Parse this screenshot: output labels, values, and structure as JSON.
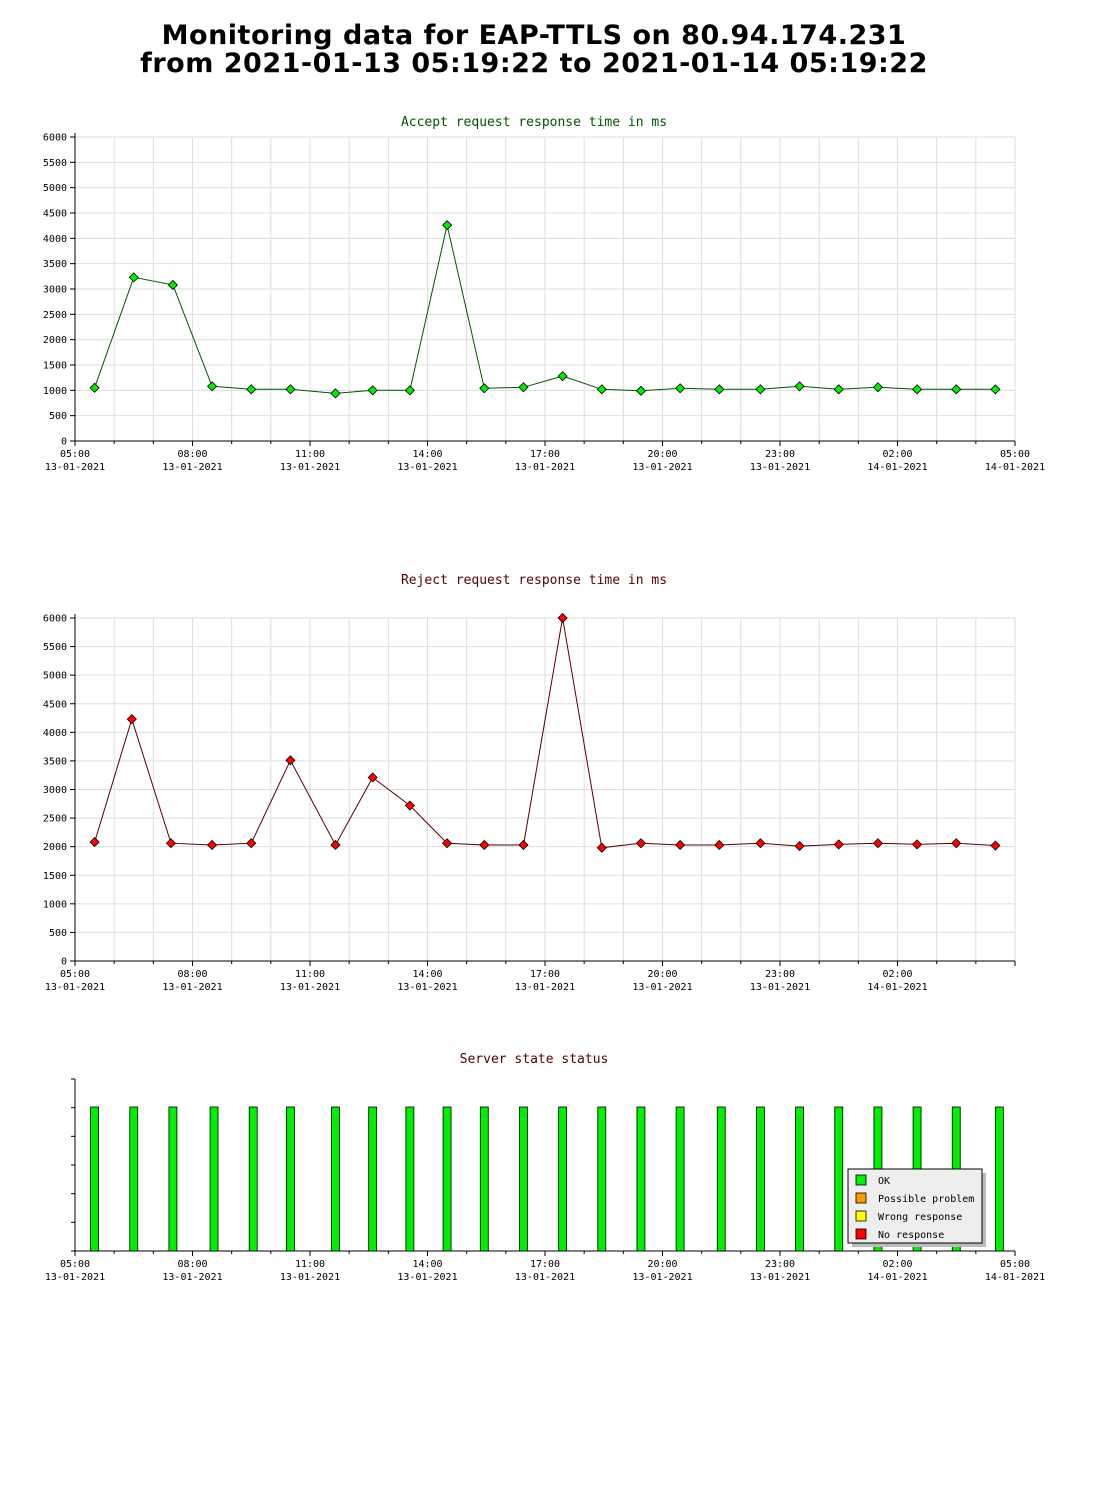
{
  "page": {
    "title_line1": "Monitoring data for EAP-TTLS on 80.94.174.231",
    "title_line2": "from 2021-01-13 05:19:22 to 2021-01-14 05:19:22"
  },
  "colors": {
    "accept_line": "#005500",
    "accept_marker": "#00ee00",
    "reject_line": "#550000",
    "reject_marker": "#ff0000",
    "accept_title": "#005500",
    "reject_title": "#550000",
    "status_title": "#550000",
    "ok": "#00ee00",
    "possible_problem": "#ff9900",
    "wrong_response": "#ffff00",
    "no_response": "#ff0000",
    "grid": "#dddddd"
  },
  "chart_data": [
    {
      "type": "line",
      "title": "Accept request response time in ms",
      "ylim": [
        0,
        6000
      ],
      "yticks": [
        0,
        500,
        1000,
        1500,
        2000,
        2500,
        3000,
        3500,
        4000,
        4500,
        5000,
        5500,
        6000
      ],
      "x_tick_labels": [
        {
          "time": "05:00",
          "date": "13-01-2021"
        },
        {
          "time": "08:00",
          "date": "13-01-2021"
        },
        {
          "time": "11:00",
          "date": "13-01-2021"
        },
        {
          "time": "14:00",
          "date": "13-01-2021"
        },
        {
          "time": "17:00",
          "date": "13-01-2021"
        },
        {
          "time": "20:00",
          "date": "13-01-2021"
        },
        {
          "time": "23:00",
          "date": "13-01-2021"
        },
        {
          "time": "02:00",
          "date": "14-01-2021"
        },
        {
          "time": "05:00",
          "date": "14-01-2021"
        }
      ],
      "x_hours": [
        0.5,
        1.5,
        2.5,
        3.5,
        4.5,
        5.5,
        6.65,
        7.6,
        8.55,
        9.5,
        10.45,
        11.45,
        12.45,
        13.45,
        14.45,
        15.45,
        16.45,
        17.5,
        18.5,
        19.5,
        20.5,
        21.5,
        22.5,
        23.5
      ],
      "values": [
        1050,
        3230,
        3080,
        1080,
        1020,
        1020,
        940,
        1000,
        1000,
        4260,
        1040,
        1060,
        1280,
        1020,
        990,
        1040,
        1020,
        1020,
        1080,
        1020,
        1060,
        1020,
        1020,
        1020
      ],
      "grid": true
    },
    {
      "type": "line",
      "title": "Reject request response time in ms",
      "ylim": [
        0,
        6000
      ],
      "yticks": [
        0,
        500,
        1000,
        1500,
        2000,
        2500,
        3000,
        3500,
        4000,
        4500,
        5000,
        5500,
        6000
      ],
      "x_tick_labels": [
        {
          "time": "05:00",
          "date": "13-01-2021"
        },
        {
          "time": "08:00",
          "date": "13-01-2021"
        },
        {
          "time": "11:00",
          "date": "13-01-2021"
        },
        {
          "time": "14:00",
          "date": "13-01-2021"
        },
        {
          "time": "17:00",
          "date": "13-01-2021"
        },
        {
          "time": "20:00",
          "date": "13-01-2021"
        },
        {
          "time": "23:00",
          "date": "13-01-2021"
        },
        {
          "time": "02:00",
          "date": "14-01-2021"
        }
      ],
      "x_hours": [
        0.5,
        1.45,
        2.45,
        3.5,
        4.5,
        5.5,
        6.65,
        7.6,
        8.55,
        9.5,
        10.45,
        11.45,
        12.45,
        13.45,
        14.45,
        15.45,
        16.45,
        17.5,
        18.5,
        19.5,
        20.5,
        21.5,
        22.5,
        23.5
      ],
      "values": [
        2080,
        4230,
        2060,
        2030,
        2060,
        3510,
        2030,
        3210,
        2720,
        2060,
        2030,
        2030,
        6000,
        1980,
        2060,
        2030,
        2030,
        2060,
        2010,
        2040,
        2060,
        2040,
        2060,
        2020
      ],
      "grid": true
    },
    {
      "type": "bar",
      "title": "Server state status",
      "x_tick_labels": [
        {
          "time": "05:00",
          "date": "13-01-2021"
        },
        {
          "time": "08:00",
          "date": "13-01-2021"
        },
        {
          "time": "11:00",
          "date": "13-01-2021"
        },
        {
          "time": "14:00",
          "date": "13-01-2021"
        },
        {
          "time": "17:00",
          "date": "13-01-2021"
        },
        {
          "time": "20:00",
          "date": "13-01-2021"
        },
        {
          "time": "23:00",
          "date": "13-01-2021"
        },
        {
          "time": "02:00",
          "date": "14-01-2021"
        },
        {
          "time": "05:00",
          "date": "14-01-2021"
        }
      ],
      "x_hours": [
        0.5,
        1.5,
        2.5,
        3.55,
        4.55,
        5.5,
        6.65,
        7.6,
        8.55,
        9.5,
        10.45,
        11.45,
        12.45,
        13.45,
        14.45,
        15.45,
        16.5,
        17.5,
        18.5,
        19.5,
        20.5,
        21.5,
        22.5,
        23.6
      ],
      "states": [
        "OK",
        "OK",
        "OK",
        "OK",
        "OK",
        "OK",
        "OK",
        "OK",
        "OK",
        "OK",
        "OK",
        "OK",
        "OK",
        "OK",
        "OK",
        "OK",
        "OK",
        "OK",
        "OK",
        "OK",
        "OK",
        "OK",
        "OK",
        "OK"
      ],
      "legend": [
        {
          "label": "OK",
          "color": "#00ee00"
        },
        {
          "label": "Possible problem",
          "color": "#ff9900"
        },
        {
          "label": "Wrong response",
          "color": "#ffff00"
        },
        {
          "label": "No response",
          "color": "#ff0000"
        }
      ],
      "legend_position": "bottom-right",
      "grid": false
    }
  ]
}
